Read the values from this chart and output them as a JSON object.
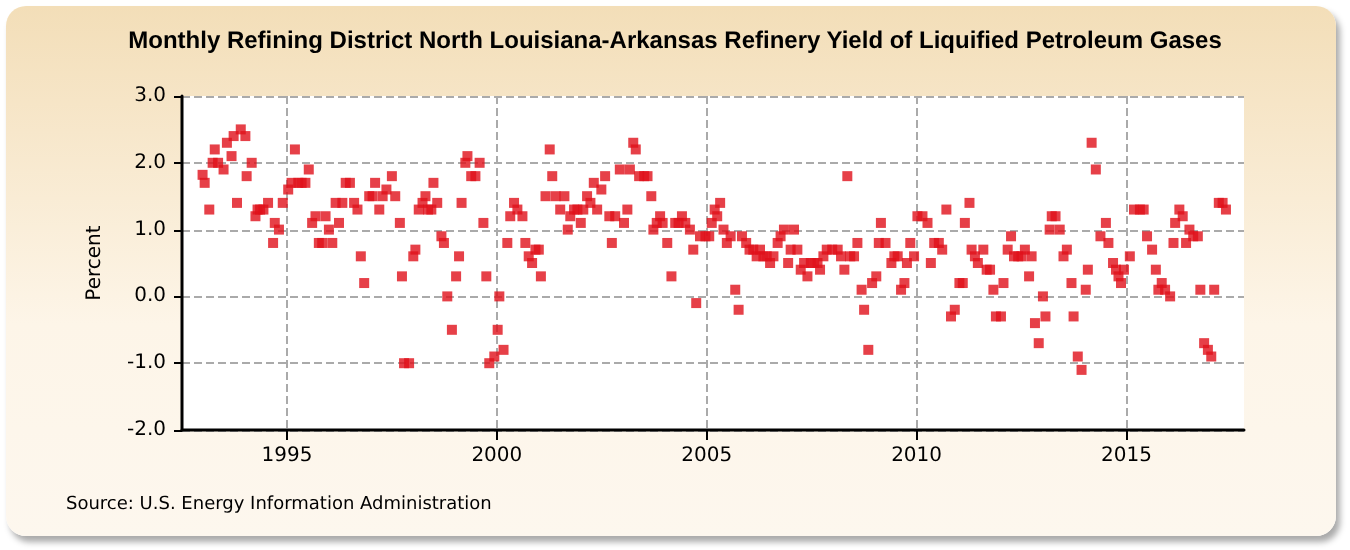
{
  "chart_data": {
    "type": "scatter",
    "title": "Monthly Refining District North Louisiana-Arkansas Refinery Yield of Liquified Petroleum Gases",
    "ylabel": "Percent",
    "annotations": [
      "Source: U.S. Energy Information Administration"
    ],
    "xlim": [
      1992.5,
      2017.8
    ],
    "xticks": [
      1995,
      2000,
      2005,
      2010,
      2015
    ],
    "ylim": [
      -2,
      3
    ],
    "yticks": [
      {
        "value": -2,
        "label": "-2.0"
      },
      {
        "value": -1,
        "label": "-1.0"
      },
      {
        "value": 0,
        "label": "0.0"
      },
      {
        "value": 1,
        "label": "1.0"
      },
      {
        "value": 2,
        "label": "2.0"
      },
      {
        "value": 3,
        "label": "3.0"
      }
    ],
    "grid": true,
    "marker": "square",
    "series": [
      {
        "color": "#e0101a",
        "x": [
          1992.99,
          1993.04,
          1993.15,
          1993.23,
          1993.28,
          1993.36,
          1993.49,
          1993.57,
          1993.68,
          1993.73,
          1993.81,
          1993.9,
          1994.01,
          1994.04,
          1994.16,
          1994.25,
          1994.3,
          1994.36,
          1994.44,
          1994.55,
          1994.67,
          1994.71,
          1994.81,
          1994.9,
          1995.03,
          1995.11,
          1995.19,
          1995.27,
          1995.35,
          1995.44,
          1995.52,
          1995.6,
          1995.68,
          1995.76,
          1995.84,
          1995.92,
          1996.0,
          1996.08,
          1996.16,
          1996.24,
          1996.32,
          1996.4,
          1996.5,
          1996.6,
          1996.68,
          1996.76,
          1996.84,
          1996.96,
          1997.04,
          1997.1,
          1997.2,
          1997.28,
          1997.37,
          1997.5,
          1997.58,
          1997.69,
          1997.74,
          1997.79,
          1997.91,
          1998.01,
          1998.06,
          1998.14,
          1998.23,
          1998.3,
          1998.36,
          1998.44,
          1998.49,
          1998.58,
          1998.68,
          1998.74,
          1998.82,
          1998.93,
          1999.03,
          1999.1,
          1999.16,
          1999.25,
          1999.3,
          1999.39,
          1999.49,
          1999.59,
          1999.68,
          1999.75,
          1999.82,
          1999.94,
          2000.02,
          2000.06,
          2000.16,
          2000.25,
          2000.32,
          2000.41,
          2000.49,
          2000.61,
          2000.68,
          2000.76,
          2000.84,
          2000.92,
          2001.0,
          2001.05,
          2001.16,
          2001.26,
          2001.32,
          2001.4,
          2001.51,
          2001.61,
          2001.69,
          2001.75,
          2001.84,
          2001.92,
          2002.0,
          2002.06,
          2002.15,
          2002.23,
          2002.31,
          2002.39,
          2002.49,
          2002.58,
          2002.68,
          2002.74,
          2002.82,
          2002.93,
          2003.03,
          2003.11,
          2003.17,
          2003.25,
          2003.31,
          2003.39,
          2003.51,
          2003.59,
          2003.68,
          2003.73,
          2003.81,
          2003.89,
          2003.95,
          2004.06,
          2004.16,
          2004.25,
          2004.33,
          2004.41,
          2004.49,
          2004.6,
          2004.68,
          2004.75,
          2004.84,
          2004.97,
          2005.06,
          2005.12,
          2005.19,
          2005.25,
          2005.32,
          2005.4,
          2005.48,
          2005.57,
          2005.68,
          2005.76,
          2005.84,
          2005.94,
          2006.02,
          2006.11,
          2006.19,
          2006.27,
          2006.35,
          2006.43,
          2006.51,
          2006.59,
          2006.69,
          2006.76,
          2006.84,
          2006.94,
          2007.0,
          2007.08,
          2007.16,
          2007.24,
          2007.32,
          2007.4,
          2007.48,
          2007.56,
          2007.64,
          2007.7,
          2007.78,
          2007.86,
          2007.99,
          2008.12,
          2008.2,
          2008.28,
          2008.35,
          2008.42,
          2008.51,
          2008.59,
          2008.69,
          2008.75,
          2008.85,
          2008.94,
          2009.04,
          2009.1,
          2009.15,
          2009.26,
          2009.4,
          2009.47,
          2009.55,
          2009.63,
          2009.71,
          2009.77,
          2009.85,
          2009.94,
          2010.02,
          2010.14,
          2010.26,
          2010.34,
          2010.42,
          2010.53,
          2010.61,
          2010.71,
          2010.82,
          2010.91,
          2011.02,
          2011.1,
          2011.15,
          2011.26,
          2011.31,
          2011.39,
          2011.46,
          2011.59,
          2011.67,
          2011.75,
          2011.83,
          2011.89,
          2012.01,
          2012.07,
          2012.17,
          2012.25,
          2012.32,
          2012.42,
          2012.5,
          2012.58,
          2012.68,
          2012.74,
          2012.82,
          2012.91,
          2013.01,
          2013.07,
          2013.17,
          2013.22,
          2013.31,
          2013.41,
          2013.5,
          2013.58,
          2013.69,
          2013.74,
          2013.84,
          2013.93,
          2014.03,
          2014.08,
          2014.17,
          2014.27,
          2014.38,
          2014.51,
          2014.57,
          2014.68,
          2014.75,
          2014.81,
          2014.87,
          2014.94,
          2015.08,
          2015.18,
          2015.32,
          2015.41,
          2015.49,
          2015.61,
          2015.7,
          2015.76,
          2015.84,
          2015.92,
          2016.04,
          2016.12,
          2016.16,
          2016.26,
          2016.34,
          2016.42,
          2016.5,
          2016.59,
          2016.7,
          2016.76,
          2016.85,
          2016.94,
          2017.02,
          2017.09,
          2017.2,
          2017.29,
          2017.37
        ],
        "values": [
          1.82,
          1.7,
          1.3,
          2.0,
          2.2,
          2.0,
          1.9,
          2.3,
          2.1,
          2.4,
          1.4,
          2.5,
          2.4,
          1.8,
          2.0,
          1.2,
          1.3,
          1.3,
          1.3,
          1.4,
          0.8,
          1.1,
          1.0,
          1.4,
          1.6,
          1.7,
          2.2,
          1.7,
          1.7,
          1.7,
          1.9,
          1.1,
          1.2,
          0.8,
          0.8,
          1.2,
          1.0,
          0.8,
          1.4,
          1.1,
          1.4,
          1.7,
          1.7,
          1.4,
          1.3,
          0.6,
          0.2,
          1.5,
          1.5,
          1.7,
          1.3,
          1.5,
          1.6,
          1.8,
          1.5,
          1.1,
          0.3,
          -1.0,
          -1.0,
          0.6,
          0.7,
          1.3,
          1.4,
          1.5,
          1.3,
          1.3,
          1.7,
          1.4,
          0.9,
          0.8,
          0.0,
          -0.5,
          0.3,
          0.6,
          1.4,
          2.0,
          2.1,
          1.8,
          1.8,
          2.0,
          1.1,
          0.3,
          -1.0,
          -0.9,
          -0.5,
          0.0,
          -0.8,
          0.8,
          1.2,
          1.4,
          1.3,
          1.2,
          0.8,
          0.6,
          0.5,
          0.7,
          0.7,
          0.3,
          1.5,
          2.2,
          1.8,
          1.5,
          1.3,
          1.5,
          1.0,
          1.2,
          1.3,
          1.3,
          1.1,
          1.3,
          1.5,
          1.4,
          1.7,
          1.3,
          1.6,
          1.8,
          1.2,
          0.8,
          1.2,
          1.9,
          1.1,
          1.3,
          1.9,
          2.3,
          2.2,
          1.8,
          1.8,
          1.8,
          1.5,
          1.0,
          1.1,
          1.2,
          1.1,
          0.8,
          0.3,
          1.1,
          1.1,
          1.2,
          1.1,
          1.0,
          0.7,
          -0.1,
          0.9,
          0.9,
          0.9,
          1.1,
          1.3,
          1.2,
          1.4,
          1.0,
          0.8,
          0.9,
          0.1,
          -0.2,
          0.9,
          0.8,
          0.7,
          0.7,
          0.6,
          0.7,
          0.6,
          0.6,
          0.5,
          0.6,
          0.8,
          0.9,
          1.0,
          0.5,
          0.7,
          1.0,
          0.7,
          0.4,
          0.5,
          0.3,
          0.5,
          0.5,
          0.5,
          0.4,
          0.6,
          0.7,
          0.7,
          0.7,
          0.6,
          0.4,
          1.8,
          0.6,
          0.6,
          0.8,
          0.1,
          -0.2,
          -0.8,
          0.2,
          0.3,
          0.8,
          1.1,
          0.8,
          0.5,
          0.6,
          0.6,
          0.1,
          0.2,
          0.5,
          0.8,
          0.6,
          1.2,
          1.2,
          1.1,
          0.5,
          0.8,
          0.8,
          0.7,
          1.3,
          -0.3,
          -0.2,
          0.2,
          0.2,
          1.1,
          1.4,
          0.7,
          0.6,
          0.5,
          0.7,
          0.4,
          0.4,
          0.1,
          -0.3,
          -0.3,
          0.2,
          0.7,
          0.9,
          0.6,
          0.6,
          0.6,
          0.7,
          0.3,
          0.6,
          -0.4,
          -0.7,
          0.0,
          -0.3,
          1.0,
          1.2,
          1.2,
          1.0,
          0.6,
          0.7,
          0.2,
          -0.3,
          -0.9,
          -1.1,
          0.1,
          0.4,
          2.3,
          1.9,
          0.9,
          1.1,
          0.8,
          0.5,
          0.4,
          0.3,
          0.2,
          0.4,
          0.6,
          1.3,
          1.3,
          1.3,
          0.9,
          0.7,
          0.4,
          0.1,
          0.2,
          0.1,
          0.0,
          0.8,
          1.1,
          1.3,
          1.2,
          0.8,
          1.0,
          0.9,
          0.9,
          0.1,
          -0.7,
          -0.8,
          -0.9,
          0.1,
          1.4,
          1.4,
          1.3
        ]
      }
    ]
  }
}
